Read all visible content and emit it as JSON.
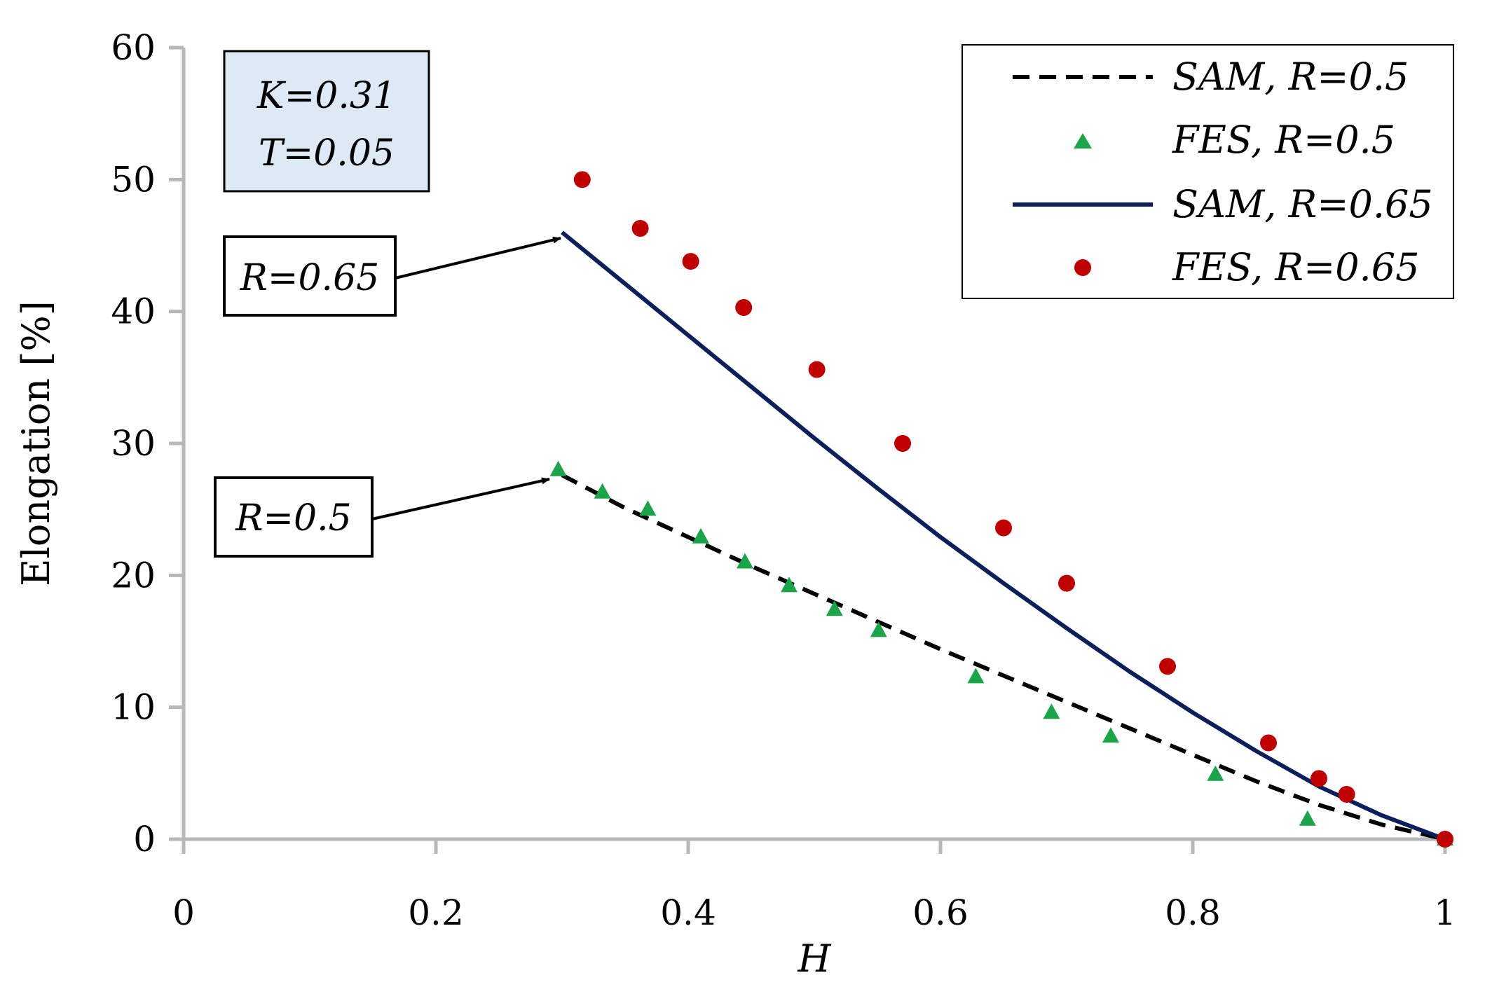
{
  "chart_data": {
    "type": "line",
    "xlabel": "H",
    "ylabel": "Elongation [%]",
    "xlim": [
      0,
      1
    ],
    "ylim": [
      0,
      60
    ],
    "xticks": [
      "0",
      "0.2",
      "0.4",
      "0.6",
      "0.8",
      "1"
    ],
    "yticks": [
      "0",
      "10",
      "20",
      "30",
      "40",
      "50",
      "60"
    ],
    "grid": false,
    "legend_position": "top-right",
    "parameters_box": {
      "line1": "K=0.31",
      "line2": "T=0.05"
    },
    "annotations": [
      {
        "label": "R=0.65",
        "points_to": [
          0.3,
          46
        ]
      },
      {
        "label": "R=0.5",
        "points_to": [
          0.3,
          27.6
        ]
      }
    ],
    "series": [
      {
        "name": "SAM, R=0.5",
        "style": "dashed-line",
        "color": "#000000",
        "x": [
          0.3,
          0.35,
          0.4,
          0.45,
          0.5,
          0.55,
          0.6,
          0.65,
          0.7,
          0.75,
          0.8,
          0.85,
          0.9,
          0.95,
          1.0
        ],
        "y": [
          27.6,
          25.1,
          22.9,
          20.7,
          18.6,
          16.5,
          14.4,
          12.4,
          10.4,
          8.4,
          6.4,
          4.4,
          2.6,
          1.1,
          0.0
        ]
      },
      {
        "name": "FES, R=0.5",
        "style": "triangle-markers",
        "color": "#1aa54a",
        "x": [
          0.297,
          0.332,
          0.368,
          0.41,
          0.445,
          0.48,
          0.516,
          0.551,
          0.628,
          0.688,
          0.735,
          0.818,
          0.891,
          1.0
        ],
        "y": [
          28.0,
          26.3,
          25.0,
          22.9,
          21.0,
          19.2,
          17.4,
          15.8,
          12.3,
          9.6,
          7.8,
          4.9,
          1.5,
          0.0
        ]
      },
      {
        "name": "SAM, R=0.65",
        "style": "solid-line",
        "color": "#0b1f5c",
        "x": [
          0.3,
          0.35,
          0.4,
          0.45,
          0.5,
          0.55,
          0.6,
          0.65,
          0.7,
          0.75,
          0.8,
          0.85,
          0.9,
          0.95,
          1.0
        ],
        "y": [
          46.0,
          42.1,
          38.2,
          34.3,
          30.4,
          26.6,
          22.9,
          19.4,
          16.0,
          12.7,
          9.6,
          6.7,
          4.0,
          1.8,
          0.0
        ]
      },
      {
        "name": "FES, R=0.65",
        "style": "circle-markers",
        "color": "#c00000",
        "x": [
          0.316,
          0.362,
          0.402,
          0.444,
          0.502,
          0.57,
          0.65,
          0.7,
          0.78,
          0.86,
          0.9,
          0.922,
          1.0
        ],
        "y": [
          50.0,
          46.3,
          43.8,
          40.3,
          35.6,
          30.0,
          23.6,
          19.4,
          13.1,
          7.3,
          4.6,
          3.4,
          0.0
        ]
      }
    ]
  }
}
